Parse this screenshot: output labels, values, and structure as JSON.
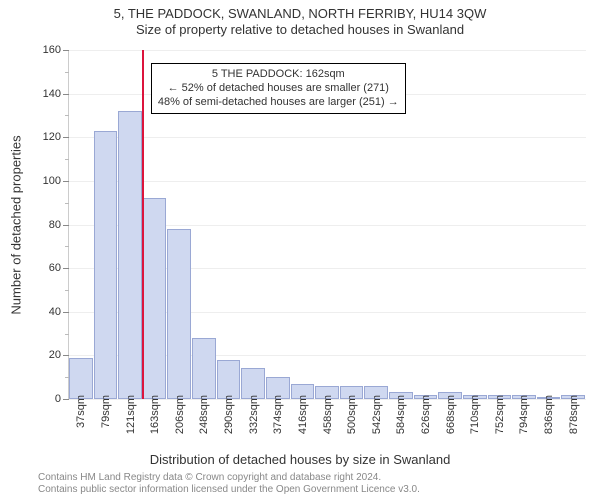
{
  "title_line1": "5, THE PADDOCK, SWANLAND, NORTH FERRIBY, HU14 3QW",
  "title_line2": "Size of property relative to detached houses in Swanland",
  "y_axis_label": "Number of detached properties",
  "x_axis_label": "Distribution of detached houses by size in Swanland",
  "footer_line1": "Contains HM Land Registry data © Crown copyright and database right 2024.",
  "footer_line2": "Contains public sector information licensed under the Open Government Licence v3.0.",
  "annotation": {
    "line1": "5 THE PADDOCK: 162sqm",
    "line2": "← 52% of detached houses are smaller (271)",
    "line3": "48% of semi-detached houses are larger (251) →",
    "at_category_index": 3
  },
  "chart": {
    "type": "bar",
    "ylim": [
      0,
      160
    ],
    "ytick_step": 20,
    "yminor_step": 10,
    "bar_fill_color": "#cfd8f0",
    "bar_stroke_color": "#9aa8d4",
    "highlight_color": "#dc143c",
    "background_color": "#ffffff",
    "grid_color": "#eeeeee",
    "title_fontsize": 13,
    "label_fontsize": 13,
    "tick_fontsize": 11,
    "x_tick_rotation": -90,
    "categories": [
      "37sqm",
      "79sqm",
      "121sqm",
      "163sqm",
      "206sqm",
      "248sqm",
      "290sqm",
      "332sqm",
      "374sqm",
      "416sqm",
      "458sqm",
      "500sqm",
      "542sqm",
      "584sqm",
      "626sqm",
      "668sqm",
      "710sqm",
      "752sqm",
      "794sqm",
      "836sqm",
      "878sqm"
    ],
    "values": [
      19,
      123,
      132,
      92,
      78,
      28,
      18,
      14,
      10,
      7,
      6,
      6,
      6,
      3,
      2,
      3,
      2,
      2,
      2,
      0,
      2
    ],
    "highlight_at_index": 3
  }
}
